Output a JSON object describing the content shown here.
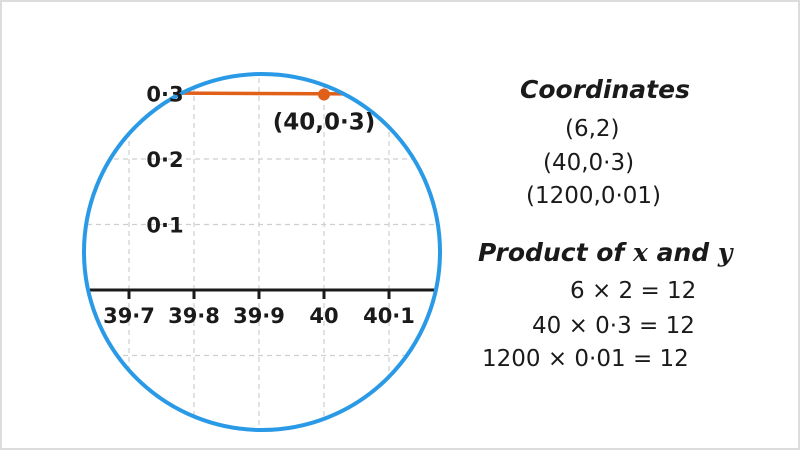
{
  "chart_data": {
    "type": "line",
    "x_ticks": [
      "39·7",
      "39·8",
      "39·9",
      "40",
      "40·1"
    ],
    "y_ticks": [
      "0·3",
      "0·2",
      "0·1"
    ],
    "series": [
      {
        "x": [
          39.7,
          40.12
        ],
        "y": [
          0.301,
          0.299
        ],
        "color": "#e0601a"
      }
    ],
    "highlighted_point": {
      "x": 40,
      "y": 0.3,
      "label": "(40,0·3)"
    },
    "grid": true,
    "circle_color": "#2a9ae6"
  },
  "panel": {
    "coordinates_heading": "Coordinates",
    "coordinates": [
      "(6,2)",
      "(40,0·3)",
      "(1200,0·01)"
    ],
    "product_heading_prefix": "Product of ",
    "product_heading_x": "x",
    "product_heading_mid": " and ",
    "product_heading_y": "y",
    "products": [
      "6 × 2 = 12",
      "40 × 0·3 = 12",
      "1200 × 0·01 = 12"
    ]
  }
}
